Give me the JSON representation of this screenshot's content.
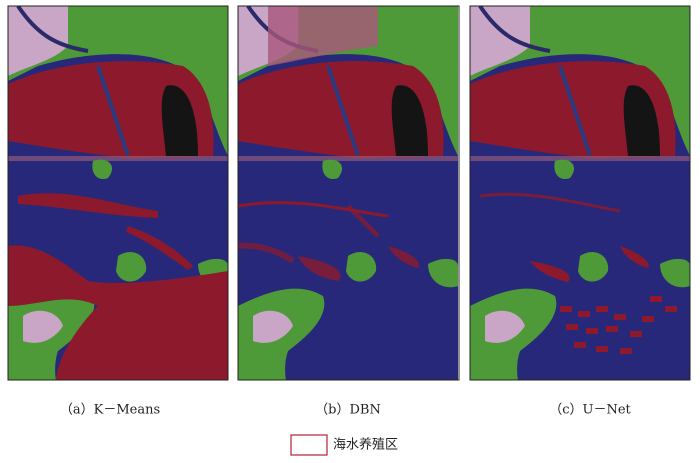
{
  "panels": [
    {
      "caption": "（a）K－Means"
    },
    {
      "caption": "（b）DBN"
    },
    {
      "caption": "（c）U－Net"
    }
  ],
  "legend": {
    "label": "海水养殖区"
  }
}
